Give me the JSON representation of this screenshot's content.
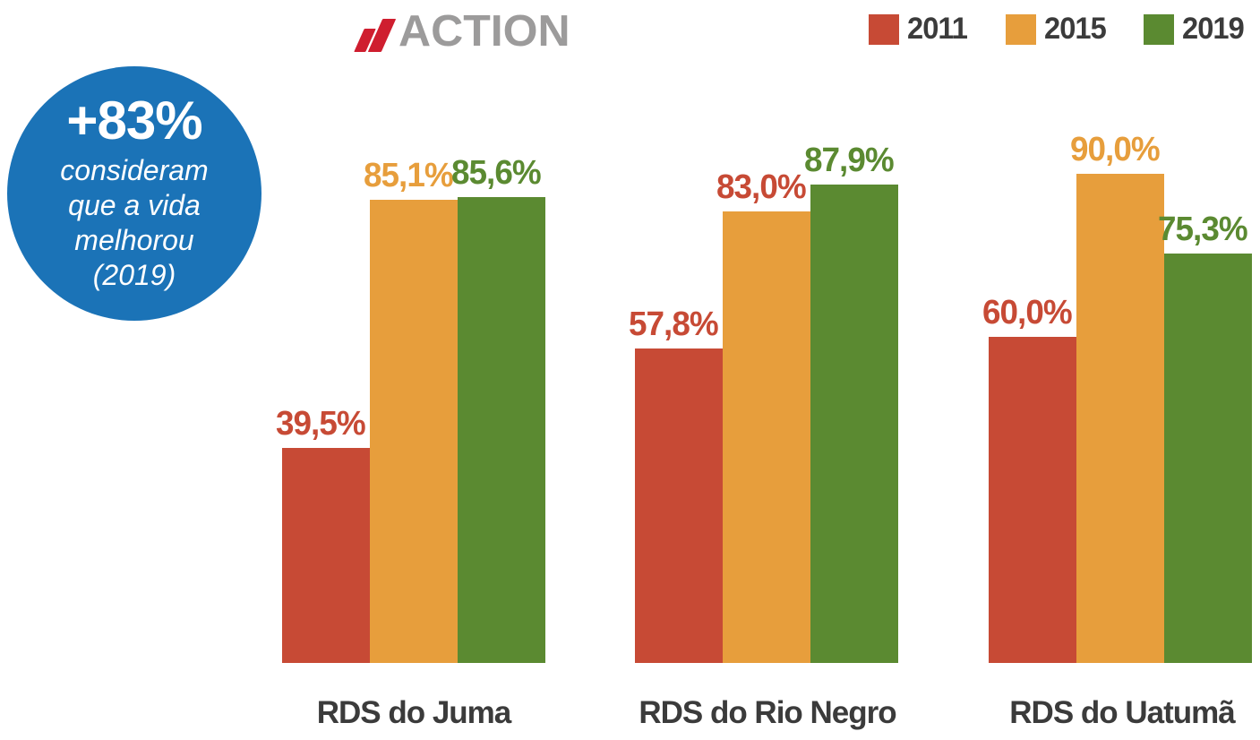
{
  "logo": {
    "text": "ACTION",
    "slash_color": "#cf1e2f",
    "text_color": "#9c9b9b"
  },
  "badge": {
    "headline": "+83%",
    "lines": [
      "consideram",
      "que a vida",
      "melhorou",
      "(2019)"
    ],
    "bg_color": "#1b73b7"
  },
  "legend": {
    "items": [
      {
        "label": "2011",
        "color": "#c74a35"
      },
      {
        "label": "2015",
        "color": "#e79e3c"
      },
      {
        "label": "2019",
        "color": "#5b8a31"
      }
    ],
    "text_color": "#3b3b3b"
  },
  "chart_data": {
    "type": "bar",
    "categories": [
      "RDS do Juma",
      "RDS do Rio Negro",
      "RDS do Uatumã"
    ],
    "series": [
      {
        "name": "2011",
        "color": "#c74a35",
        "values": [
          39.5,
          57.8,
          60.0
        ]
      },
      {
        "name": "2015",
        "color": "#e79e3c",
        "values": [
          85.1,
          83.0,
          90.0
        ]
      },
      {
        "name": "2019",
        "color": "#5b8a31",
        "values": [
          85.6,
          87.9,
          75.3
        ]
      }
    ],
    "value_labels": [
      [
        "39,5%",
        "85,1%",
        "85,6%"
      ],
      [
        "57,8%",
        "83,0%",
        "87,9%"
      ],
      [
        "60,0%",
        "90,0%",
        "75,3%"
      ]
    ],
    "value_label_colors": [
      [
        "#c74a35",
        "#e79e3c",
        "#5b8a31"
      ],
      [
        "#c74a35",
        "#c74a35",
        "#5b8a31"
      ],
      [
        "#c74a35",
        "#e79e3c",
        "#5b8a31"
      ]
    ],
    "category_label_color": "#3b3b3b",
    "ylim": [
      0,
      100
    ],
    "grid": false,
    "axis_labels_visible": false,
    "legend_position": "top-right"
  }
}
